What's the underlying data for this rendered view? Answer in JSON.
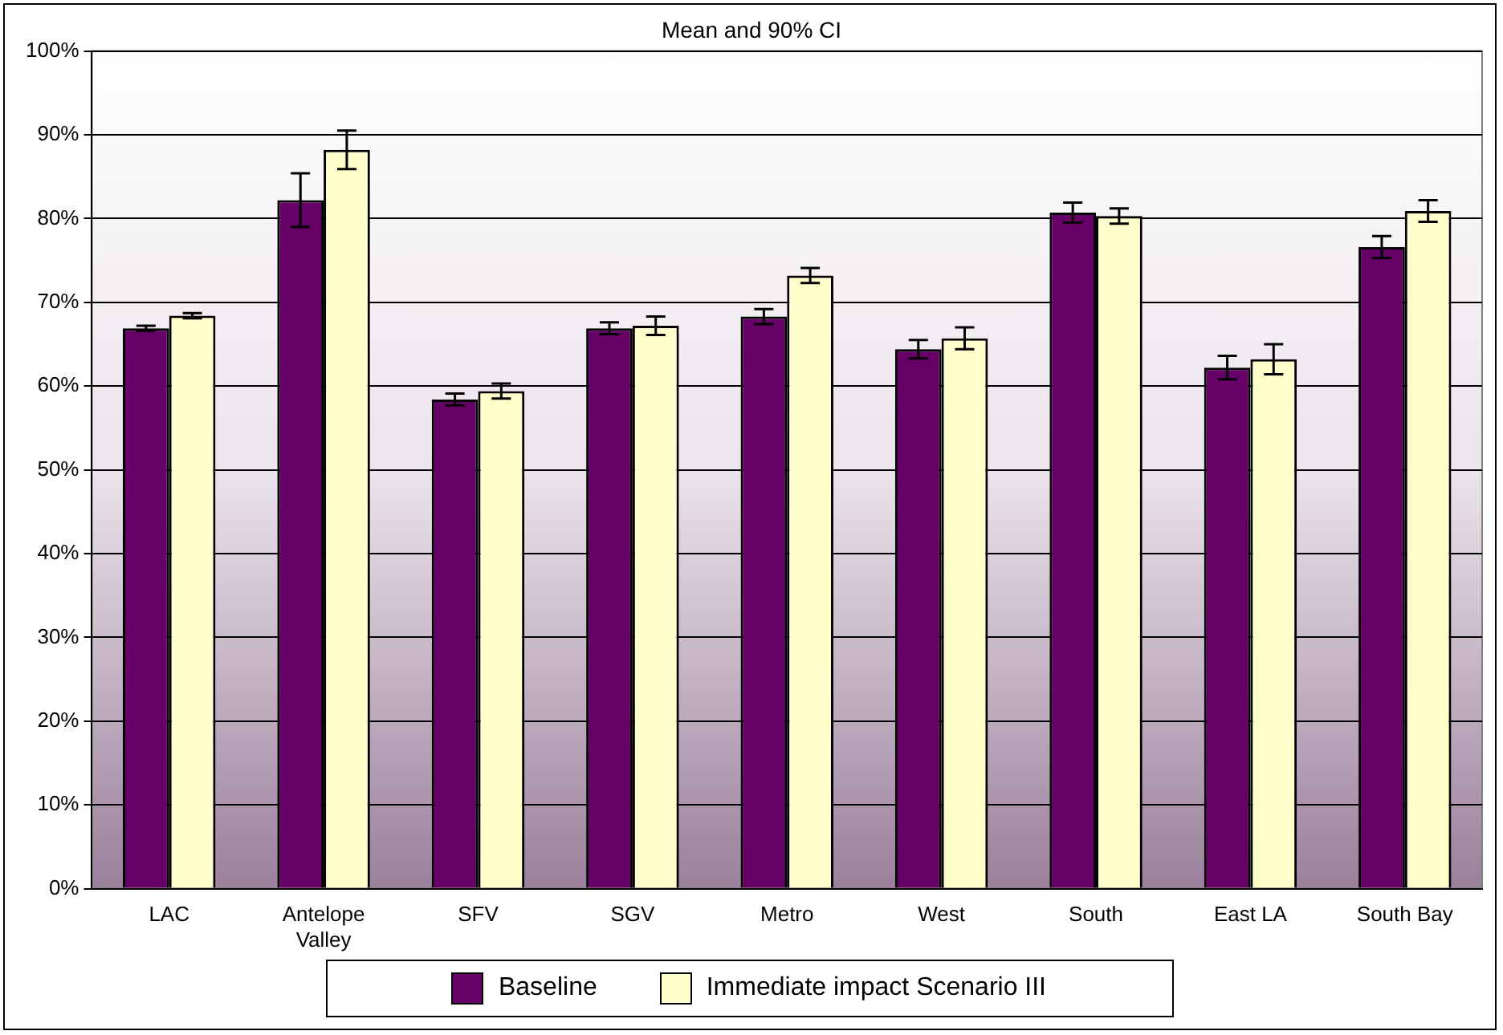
{
  "chart_data": {
    "type": "bar",
    "title": "Mean and 90% CI",
    "categories": [
      "LAC",
      "Antelope Valley",
      "SFV",
      "SGV",
      "Metro",
      "West",
      "South",
      "East LA",
      "South Bay"
    ],
    "series": [
      {
        "name": "Baseline",
        "color": "#660066",
        "values": [
          66.9,
          82.2,
          58.4,
          66.9,
          68.3,
          64.4,
          80.7,
          62.2,
          76.6
        ],
        "errors": [
          0.3,
          3.2,
          0.7,
          0.7,
          0.9,
          1.1,
          1.2,
          1.4,
          1.3
        ]
      },
      {
        "name": "Immediate impact Scenario III",
        "color": "#ffffcc",
        "values": [
          68.4,
          88.2,
          59.4,
          67.2,
          73.2,
          65.7,
          80.3,
          63.2,
          80.9
        ],
        "errors": [
          0.3,
          2.3,
          0.9,
          1.1,
          0.9,
          1.3,
          0.9,
          1.8,
          1.3
        ]
      }
    ],
    "ylim": [
      0,
      100
    ],
    "yticks": [
      {
        "value": 0,
        "label": "0%"
      },
      {
        "value": 10,
        "label": "10%"
      },
      {
        "value": 20,
        "label": "20%"
      },
      {
        "value": 30,
        "label": "30%"
      },
      {
        "value": 40,
        "label": "40%"
      },
      {
        "value": 50,
        "label": "50%"
      },
      {
        "value": 60,
        "label": "60%"
      },
      {
        "value": 70,
        "label": "70%"
      },
      {
        "value": 80,
        "label": "80%"
      },
      {
        "value": 90,
        "label": "90%"
      },
      {
        "value": 100,
        "label": "100%"
      }
    ],
    "grid": "y",
    "legend": "bottom"
  }
}
